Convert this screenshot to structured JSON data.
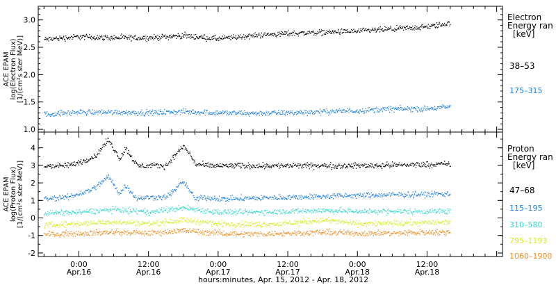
{
  "colors": {
    "black": "#000000",
    "blue": "#1f7fe0",
    "cyan": "#34d8cc",
    "yellow": "#d4ec1e",
    "orange": "#f08a1a"
  },
  "x_axis": {
    "label": "hours:minutes, Apr. 15, 2012 - Apr. 18, 2012",
    "ticks": [
      {
        "hour": 24,
        "time": "0:00",
        "date": "Apr.16"
      },
      {
        "hour": 36,
        "time": "12:00",
        "date": "Apr.16"
      },
      {
        "hour": 48,
        "time": "0:00",
        "date": "Apr.17"
      },
      {
        "hour": 60,
        "time": "12:00",
        "date": "Apr.17"
      },
      {
        "hour": 72,
        "time": "0:00",
        "date": "Apr.18"
      },
      {
        "hour": 84,
        "time": "12:00",
        "date": "Apr.18"
      }
    ]
  },
  "chart_data": [
    {
      "type": "scatter",
      "ylabel": [
        "ACE EPAM",
        "log(Electron Flux)",
        "[1/(cm²s ster MeV)]"
      ],
      "ylim": [
        0.95,
        3.25
      ],
      "yticks": [
        "1.0",
        "1.5",
        "2.0",
        "2.5",
        "3.0"
      ],
      "legend_title": [
        "Electron",
        "Energy ran",
        "[keV]"
      ],
      "series": [
        {
          "name": "38–53",
          "color": "black",
          "x": [
            18,
            24,
            30,
            36,
            42,
            48,
            54,
            60,
            66,
            72,
            78,
            84,
            88
          ],
          "y": [
            2.65,
            2.7,
            2.68,
            2.68,
            2.72,
            2.66,
            2.72,
            2.76,
            2.78,
            2.8,
            2.84,
            2.88,
            2.95
          ]
        },
        {
          "name": "175–315",
          "color": "blue",
          "x": [
            18,
            24,
            30,
            36,
            42,
            48,
            54,
            60,
            66,
            72,
            78,
            84,
            88
          ],
          "y": [
            1.28,
            1.32,
            1.32,
            1.31,
            1.33,
            1.31,
            1.3,
            1.31,
            1.33,
            1.35,
            1.38,
            1.38,
            1.42
          ]
        }
      ]
    },
    {
      "type": "scatter",
      "ylabel": [
        "ACE EPAM",
        "log(Proton Flux)",
        "[1/(cm²s ster MeV)]"
      ],
      "ylim": [
        -2.2,
        4.9
      ],
      "yticks": [
        "-2",
        "-1",
        "0",
        "1",
        "2",
        "3",
        "4"
      ],
      "legend_title": [
        "Proton",
        "Energy ran",
        "[keV]"
      ],
      "series": [
        {
          "name": "47–68",
          "color": "black",
          "x": [
            18,
            22,
            25,
            27,
            29,
            31,
            32,
            34,
            36,
            39,
            41,
            42,
            43,
            44,
            46,
            48,
            60,
            72,
            88
          ],
          "y": [
            3.0,
            3.0,
            3.3,
            3.6,
            4.5,
            3.4,
            4.0,
            3.0,
            3.0,
            3.0,
            3.8,
            4.1,
            3.7,
            3.1,
            3.0,
            3.0,
            3.0,
            3.0,
            3.1
          ]
        },
        {
          "name": "115–195",
          "color": "blue",
          "x": [
            18,
            22,
            25,
            27,
            29,
            31,
            32,
            34,
            36,
            39,
            41,
            42,
            43,
            44,
            46,
            48,
            60,
            72,
            88
          ],
          "y": [
            1.1,
            1.2,
            1.5,
            1.8,
            2.4,
            1.4,
            1.9,
            1.1,
            1.2,
            1.2,
            1.8,
            2.1,
            1.6,
            1.1,
            1.2,
            1.1,
            1.2,
            1.3,
            1.4
          ]
        },
        {
          "name": "310–580",
          "color": "cyan",
          "x": [
            18,
            24,
            30,
            36,
            42,
            48,
            54,
            60,
            66,
            72,
            78,
            84,
            88
          ],
          "y": [
            0.3,
            0.35,
            0.5,
            0.35,
            0.6,
            0.35,
            0.35,
            0.4,
            0.45,
            0.4,
            0.4,
            0.4,
            0.4
          ]
        },
        {
          "name": "795–1193",
          "color": "yellow",
          "x": [
            18,
            24,
            30,
            36,
            42,
            48,
            54,
            60,
            66,
            72,
            78,
            84,
            88
          ],
          "y": [
            -0.4,
            -0.3,
            -0.2,
            -0.3,
            -0.1,
            -0.3,
            -0.35,
            -0.3,
            -0.1,
            -0.3,
            -0.3,
            -0.25,
            -0.2
          ]
        },
        {
          "name": "1060–1900",
          "color": "orange",
          "x": [
            18,
            24,
            30,
            36,
            42,
            48,
            54,
            60,
            66,
            72,
            78,
            84,
            88
          ],
          "y": [
            -0.9,
            -0.85,
            -0.8,
            -0.85,
            -0.7,
            -0.85,
            -0.9,
            -0.85,
            -0.8,
            -0.85,
            -0.85,
            -0.8,
            -0.8
          ]
        }
      ]
    }
  ]
}
